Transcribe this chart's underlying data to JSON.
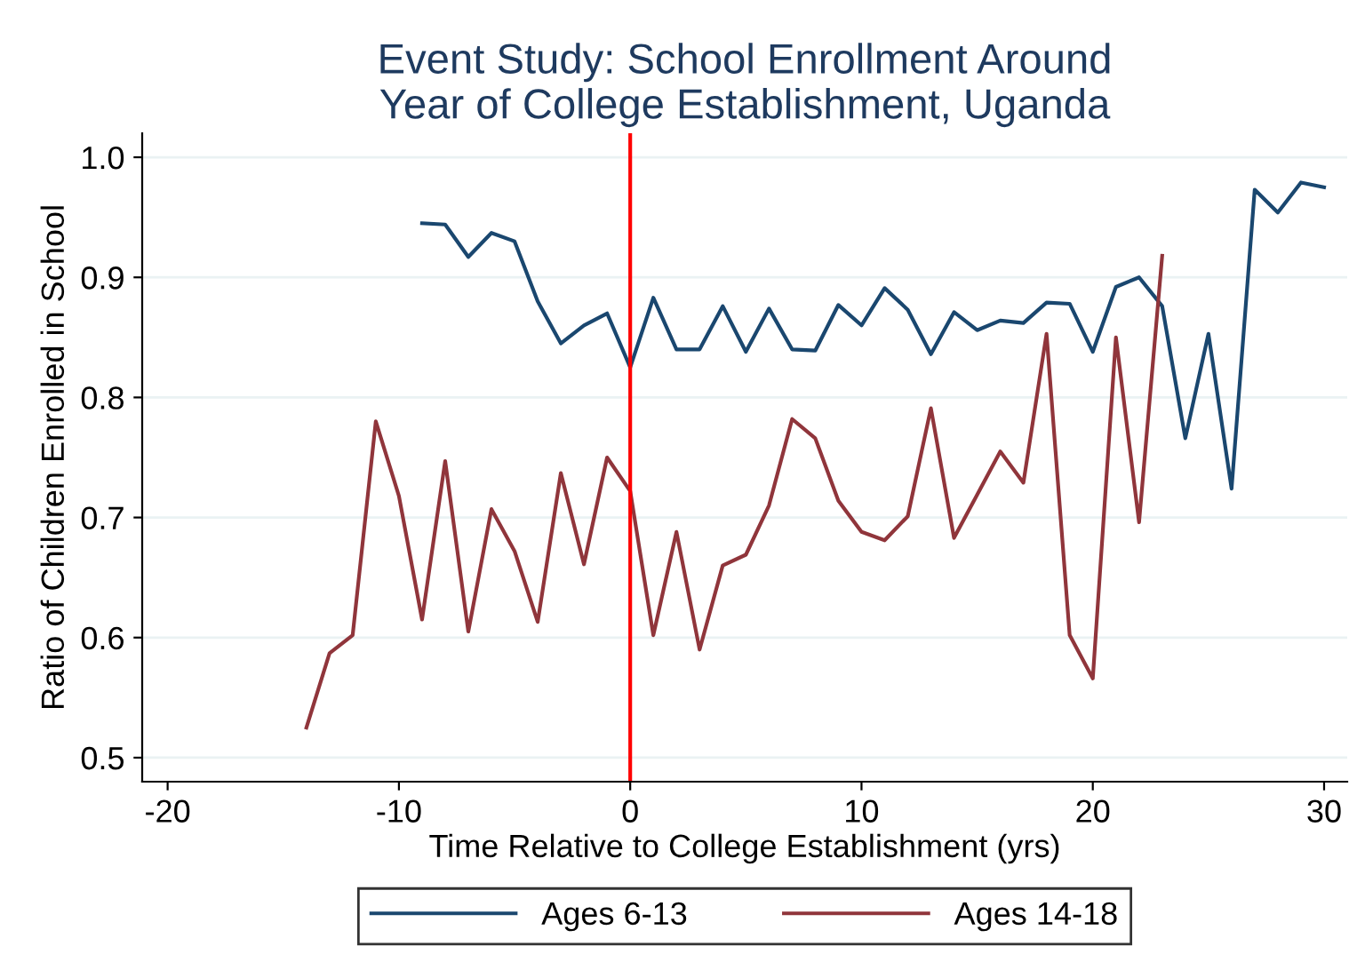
{
  "chart_data": {
    "type": "line",
    "title": "Event Study: School Enrollment Around\nYear of College Establishment, Uganda",
    "xlabel": "Time Relative to College Establishment (yrs)",
    "ylabel": "Ratio of Children Enrolled in School",
    "series": [
      {
        "name": "Ages 6-13",
        "color": "#1a476f",
        "x": [
          -9,
          -8,
          -7,
          -6,
          -5,
          -4,
          -3,
          -2,
          -1,
          0,
          1,
          2,
          3,
          4,
          5,
          6,
          7,
          8,
          9,
          10,
          11,
          12,
          13,
          14,
          15,
          16,
          17,
          18,
          19,
          20,
          21,
          22,
          23,
          24,
          25,
          26,
          27,
          28,
          29,
          30
        ],
        "values": [
          0.945,
          0.944,
          0.917,
          0.937,
          0.93,
          0.88,
          0.845,
          0.86,
          0.87,
          0.825,
          0.883,
          0.84,
          0.84,
          0.876,
          0.838,
          0.874,
          0.84,
          0.839,
          0.877,
          0.86,
          0.891,
          0.873,
          0.836,
          0.871,
          0.856,
          0.864,
          0.862,
          0.879,
          0.878,
          0.838,
          0.892,
          0.9,
          0.876,
          0.766,
          0.853,
          0.724,
          0.973,
          0.954,
          0.979,
          0.975
        ]
      },
      {
        "name": "Ages 14-18",
        "color": "#90353b",
        "x": [
          -14,
          -13,
          -12,
          -11,
          -10,
          -9,
          -8,
          -7,
          -6,
          -5,
          -4,
          -3,
          -2,
          -1,
          0,
          1,
          2,
          3,
          4,
          5,
          6,
          7,
          8,
          9,
          10,
          11,
          12,
          13,
          14,
          15,
          16,
          17,
          18,
          19,
          20,
          21,
          22,
          23
        ],
        "values": [
          0.525,
          0.587,
          0.602,
          0.78,
          0.718,
          0.615,
          0.747,
          0.605,
          0.707,
          0.672,
          0.613,
          0.737,
          0.661,
          0.75,
          0.722,
          0.602,
          0.688,
          0.59,
          0.66,
          0.669,
          0.71,
          0.782,
          0.766,
          0.714,
          0.688,
          0.681,
          0.701,
          0.791,
          0.683,
          0.719,
          0.755,
          0.729,
          0.853,
          0.602,
          0.566,
          0.85,
          0.696,
          0.918
        ]
      }
    ],
    "xlim": [
      -21.1,
      31
    ],
    "xticks": [
      -20,
      -10,
      0,
      10,
      20,
      30
    ],
    "ylim": [
      0.48,
      1.02
    ],
    "yticks": [
      {
        "value": 0.5,
        "label": "0.5"
      },
      {
        "value": 0.6,
        "label": "0.6"
      },
      {
        "value": 0.7,
        "label": "0.7"
      },
      {
        "value": 0.8,
        "label": "0.8"
      },
      {
        "value": 0.9,
        "label": "0.9"
      },
      {
        "value": 1.0,
        "label": "1.0"
      }
    ],
    "grid": "y",
    "legend": "bottom",
    "ref_lines": [
      {
        "axis": "x",
        "value": 0,
        "color": "#ff0000"
      }
    ]
  }
}
